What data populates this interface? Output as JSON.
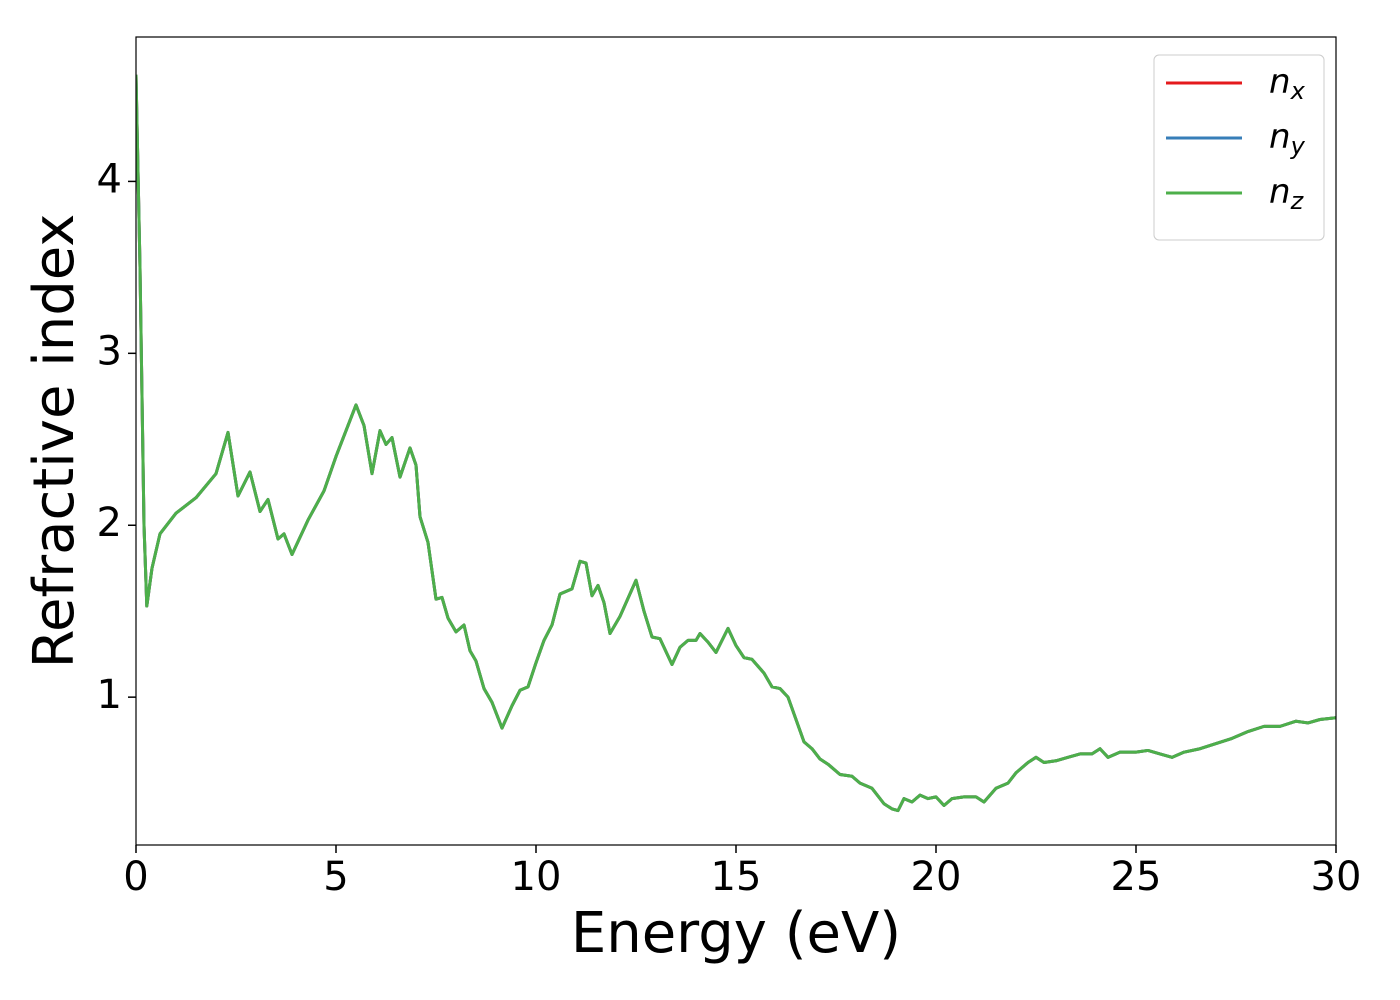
{
  "chart_data": {
    "type": "line",
    "x_label": "Energy (eV)",
    "y_label": "Refractive index",
    "x": [
      0,
      0.1,
      0.2,
      0.27,
      0.4,
      0.6,
      1.0,
      1.5,
      2.0,
      2.3,
      2.55,
      2.85,
      3.1,
      3.3,
      3.55,
      3.7,
      3.9,
      4.3,
      4.7,
      5.0,
      5.3,
      5.5,
      5.7,
      5.9,
      6.1,
      6.25,
      6.4,
      6.6,
      6.85,
      7.0,
      7.1,
      7.3,
      7.5,
      7.65,
      7.8,
      8.0,
      8.2,
      8.35,
      8.5,
      8.7,
      8.9,
      9.15,
      9.4,
      9.6,
      9.8,
      10.0,
      10.2,
      10.4,
      10.6,
      10.9,
      11.1,
      11.25,
      11.4,
      11.55,
      11.7,
      11.85,
      12.1,
      12.5,
      12.7,
      12.9,
      13.1,
      13.4,
      13.6,
      13.8,
      14.0,
      14.1,
      14.3,
      14.5,
      14.8,
      15.0,
      15.2,
      15.4,
      15.7,
      15.9,
      16.1,
      16.3,
      16.5,
      16.7,
      16.9,
      17.1,
      17.3,
      17.6,
      17.9,
      18.1,
      18.4,
      18.7,
      18.9,
      19.05,
      19.2,
      19.4,
      19.6,
      19.8,
      20.0,
      20.2,
      20.4,
      20.7,
      21.0,
      21.2,
      21.5,
      21.8,
      22.0,
      22.3,
      22.5,
      22.7,
      23.0,
      23.3,
      23.6,
      23.9,
      24.1,
      24.3,
      24.6,
      25.0,
      25.3,
      25.6,
      25.9,
      26.2,
      26.6,
      27.0,
      27.4,
      27.8,
      28.2,
      28.6,
      29.0,
      29.3,
      29.6,
      30.0
    ],
    "series": [
      {
        "name": "nx",
        "color": "#e41a1c",
        "values": [
          4.62,
          3.5,
          2.0,
          1.53,
          1.75,
          1.95,
          2.07,
          2.16,
          2.3,
          2.54,
          2.17,
          2.31,
          2.08,
          2.15,
          1.92,
          1.95,
          1.83,
          2.03,
          2.2,
          2.4,
          2.58,
          2.7,
          2.58,
          2.3,
          2.55,
          2.47,
          2.51,
          2.28,
          2.45,
          2.35,
          2.05,
          1.9,
          1.57,
          1.58,
          1.46,
          1.38,
          1.42,
          1.27,
          1.21,
          1.05,
          0.97,
          0.82,
          0.95,
          1.04,
          1.06,
          1.2,
          1.33,
          1.42,
          1.6,
          1.63,
          1.79,
          1.78,
          1.59,
          1.65,
          1.55,
          1.37,
          1.47,
          1.68,
          1.5,
          1.35,
          1.34,
          1.19,
          1.29,
          1.33,
          1.33,
          1.37,
          1.32,
          1.26,
          1.4,
          1.3,
          1.23,
          1.22,
          1.14,
          1.06,
          1.05,
          1.0,
          0.87,
          0.74,
          0.7,
          0.64,
          0.61,
          0.55,
          0.54,
          0.5,
          0.47,
          0.38,
          0.35,
          0.34,
          0.41,
          0.39,
          0.43,
          0.41,
          0.42,
          0.37,
          0.41,
          0.42,
          0.42,
          0.39,
          0.47,
          0.5,
          0.56,
          0.62,
          0.65,
          0.62,
          0.63,
          0.65,
          0.67,
          0.67,
          0.7,
          0.65,
          0.68,
          0.68,
          0.69,
          0.67,
          0.65,
          0.68,
          0.7,
          0.73,
          0.76,
          0.8,
          0.83,
          0.83,
          0.86,
          0.85,
          0.87,
          0.88
        ]
      },
      {
        "name": "ny",
        "color": "#377eb8",
        "values": [
          4.62,
          3.5,
          2.0,
          1.53,
          1.75,
          1.95,
          2.07,
          2.16,
          2.3,
          2.54,
          2.17,
          2.31,
          2.08,
          2.15,
          1.92,
          1.95,
          1.83,
          2.03,
          2.2,
          2.4,
          2.58,
          2.7,
          2.58,
          2.3,
          2.55,
          2.47,
          2.51,
          2.28,
          2.45,
          2.35,
          2.05,
          1.9,
          1.57,
          1.58,
          1.46,
          1.38,
          1.42,
          1.27,
          1.21,
          1.05,
          0.97,
          0.82,
          0.95,
          1.04,
          1.06,
          1.2,
          1.33,
          1.42,
          1.6,
          1.63,
          1.79,
          1.78,
          1.59,
          1.65,
          1.55,
          1.37,
          1.47,
          1.68,
          1.5,
          1.35,
          1.34,
          1.19,
          1.29,
          1.33,
          1.33,
          1.37,
          1.32,
          1.26,
          1.4,
          1.3,
          1.23,
          1.22,
          1.14,
          1.06,
          1.05,
          1.0,
          0.87,
          0.74,
          0.7,
          0.64,
          0.61,
          0.55,
          0.54,
          0.5,
          0.47,
          0.38,
          0.35,
          0.34,
          0.41,
          0.39,
          0.43,
          0.41,
          0.42,
          0.37,
          0.41,
          0.42,
          0.42,
          0.39,
          0.47,
          0.5,
          0.56,
          0.62,
          0.65,
          0.62,
          0.63,
          0.65,
          0.67,
          0.67,
          0.7,
          0.65,
          0.68,
          0.68,
          0.69,
          0.67,
          0.65,
          0.68,
          0.7,
          0.73,
          0.76,
          0.8,
          0.83,
          0.83,
          0.86,
          0.85,
          0.87,
          0.88
        ]
      },
      {
        "name": "nz",
        "color": "#4daf4a",
        "values": [
          4.62,
          3.5,
          2.0,
          1.53,
          1.75,
          1.95,
          2.07,
          2.16,
          2.3,
          2.54,
          2.17,
          2.31,
          2.08,
          2.15,
          1.92,
          1.95,
          1.83,
          2.03,
          2.2,
          2.4,
          2.58,
          2.7,
          2.58,
          2.3,
          2.55,
          2.47,
          2.51,
          2.28,
          2.45,
          2.35,
          2.05,
          1.9,
          1.57,
          1.58,
          1.46,
          1.38,
          1.42,
          1.27,
          1.21,
          1.05,
          0.97,
          0.82,
          0.95,
          1.04,
          1.06,
          1.2,
          1.33,
          1.42,
          1.6,
          1.63,
          1.79,
          1.78,
          1.59,
          1.65,
          1.55,
          1.37,
          1.47,
          1.68,
          1.5,
          1.35,
          1.34,
          1.19,
          1.29,
          1.33,
          1.33,
          1.37,
          1.32,
          1.26,
          1.4,
          1.3,
          1.23,
          1.22,
          1.14,
          1.06,
          1.05,
          1.0,
          0.87,
          0.74,
          0.7,
          0.64,
          0.61,
          0.55,
          0.54,
          0.5,
          0.47,
          0.38,
          0.35,
          0.34,
          0.41,
          0.39,
          0.43,
          0.41,
          0.42,
          0.37,
          0.41,
          0.42,
          0.42,
          0.39,
          0.47,
          0.5,
          0.56,
          0.62,
          0.65,
          0.62,
          0.63,
          0.65,
          0.67,
          0.67,
          0.7,
          0.65,
          0.68,
          0.68,
          0.69,
          0.67,
          0.65,
          0.68,
          0.7,
          0.73,
          0.76,
          0.8,
          0.83,
          0.83,
          0.86,
          0.85,
          0.87,
          0.88
        ]
      }
    ],
    "xlim": [
      0,
      30
    ],
    "xticks": [
      0,
      5,
      10,
      15,
      20,
      25,
      30
    ],
    "ylim": [
      0.14,
      4.84
    ],
    "yticks": [
      1,
      2,
      3,
      4
    ],
    "grid": false,
    "legend": "upper right"
  }
}
